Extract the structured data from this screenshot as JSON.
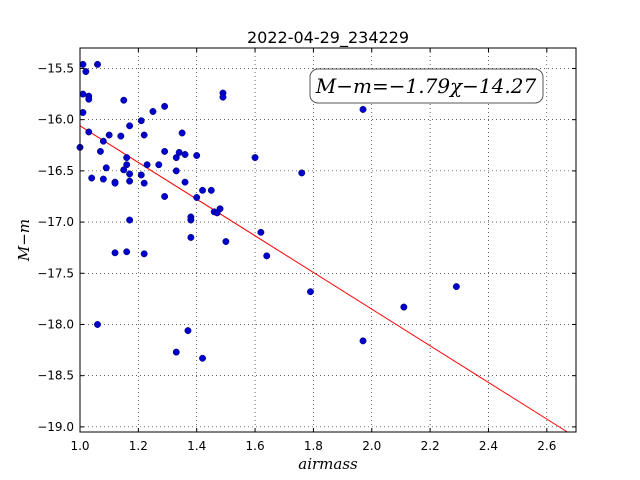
{
  "chart_data": {
    "type": "scatter",
    "title": "2022-04-29_234229",
    "xlabel": "airmass",
    "ylabel": "M−m",
    "xlim": [
      1.0,
      2.7
    ],
    "ylim": [
      -19.05,
      -15.3
    ],
    "y_inverted": true,
    "grid": true,
    "x_ticks": [
      1.0,
      1.2,
      1.4,
      1.6,
      1.8,
      2.0,
      2.2,
      2.4,
      2.6
    ],
    "x_tick_labels": [
      "1.0",
      "1.2",
      "1.4",
      "1.6",
      "1.8",
      "2.0",
      "2.2",
      "2.4",
      "2.6"
    ],
    "y_ticks": [
      -15.5,
      -16.0,
      -16.5,
      -17.0,
      -17.5,
      -18.0,
      -18.5,
      -19.0
    ],
    "y_tick_labels": [
      "−15.5",
      "−16.0",
      "−16.5",
      "−17.0",
      "−17.5",
      "−18.0",
      "−18.5",
      "−19.0"
    ],
    "annotation": "M−m=−1.79χ−14.27",
    "fit": {
      "slope": -1.79,
      "intercept": -14.27,
      "color": "#ff0000"
    },
    "marker_color": "#0000cc",
    "series": [
      {
        "points": [
          [
            1.0,
            -16.27
          ],
          [
            1.01,
            -15.46
          ],
          [
            1.01,
            -15.75
          ],
          [
            1.01,
            -15.93
          ],
          [
            1.02,
            -15.53
          ],
          [
            1.03,
            -15.77
          ],
          [
            1.03,
            -15.8
          ],
          [
            1.03,
            -16.12
          ],
          [
            1.04,
            -16.57
          ],
          [
            1.06,
            -15.46
          ],
          [
            1.06,
            -18.0
          ],
          [
            1.07,
            -16.31
          ],
          [
            1.08,
            -16.21
          ],
          [
            1.08,
            -16.58
          ],
          [
            1.09,
            -16.47
          ],
          [
            1.1,
            -16.15
          ],
          [
            1.12,
            -16.61
          ],
          [
            1.12,
            -16.62
          ],
          [
            1.12,
            -17.3
          ],
          [
            1.14,
            -16.16
          ],
          [
            1.15,
            -16.49
          ],
          [
            1.15,
            -15.81
          ],
          [
            1.16,
            -16.37
          ],
          [
            1.16,
            -16.44
          ],
          [
            1.16,
            -17.29
          ],
          [
            1.17,
            -16.06
          ],
          [
            1.17,
            -16.53
          ],
          [
            1.17,
            -16.6
          ],
          [
            1.17,
            -16.98
          ],
          [
            1.21,
            -16.01
          ],
          [
            1.21,
            -16.54
          ],
          [
            1.22,
            -16.15
          ],
          [
            1.22,
            -16.62
          ],
          [
            1.22,
            -17.31
          ],
          [
            1.23,
            -16.44
          ],
          [
            1.25,
            -15.92
          ],
          [
            1.27,
            -16.44
          ],
          [
            1.29,
            -15.87
          ],
          [
            1.29,
            -16.31
          ],
          [
            1.29,
            -16.75
          ],
          [
            1.33,
            -16.37
          ],
          [
            1.33,
            -16.5
          ],
          [
            1.33,
            -18.27
          ],
          [
            1.34,
            -16.32
          ],
          [
            1.35,
            -16.13
          ],
          [
            1.36,
            -16.34
          ],
          [
            1.36,
            -16.61
          ],
          [
            1.37,
            -18.06
          ],
          [
            1.38,
            -16.95
          ],
          [
            1.38,
            -16.98
          ],
          [
            1.38,
            -17.15
          ],
          [
            1.4,
            -16.35
          ],
          [
            1.4,
            -16.76
          ],
          [
            1.42,
            -16.69
          ],
          [
            1.42,
            -18.33
          ],
          [
            1.45,
            -16.69
          ],
          [
            1.46,
            -16.9
          ],
          [
            1.47,
            -16.91
          ],
          [
            1.48,
            -16.87
          ],
          [
            1.49,
            -15.74
          ],
          [
            1.49,
            -15.78
          ],
          [
            1.5,
            -17.19
          ],
          [
            1.6,
            -16.37
          ],
          [
            1.62,
            -17.1
          ],
          [
            1.64,
            -17.33
          ],
          [
            1.76,
            -16.52
          ],
          [
            1.79,
            -17.68
          ],
          [
            1.97,
            -15.9
          ],
          [
            1.97,
            -18.16
          ],
          [
            2.11,
            -17.83
          ],
          [
            2.29,
            -17.63
          ]
        ]
      }
    ]
  }
}
